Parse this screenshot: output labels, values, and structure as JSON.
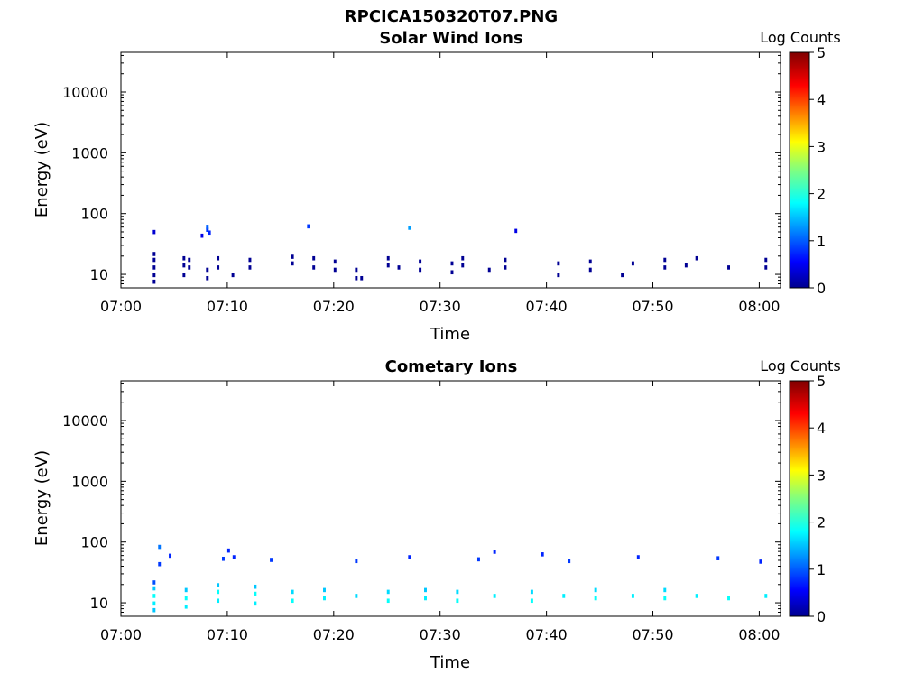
{
  "figure": {
    "title": "RPCICA150320T07.PNG"
  },
  "colorbar": {
    "label": "Log Counts",
    "range": [
      0,
      5
    ],
    "ticks": [
      0,
      1,
      2,
      3,
      4,
      5
    ],
    "colormap": "jet"
  },
  "chart_data": [
    {
      "type": "heatmap",
      "title": "Solar Wind Ions",
      "xlabel": "Time",
      "ylabel": "Energy (eV)",
      "yscale": "log",
      "ylim": [
        6,
        45000
      ],
      "xlim": [
        "07:00",
        "08:02"
      ],
      "xticks": [
        "07:00",
        "07:10",
        "07:20",
        "07:30",
        "07:40",
        "07:50",
        "08:00"
      ],
      "yticks": [
        10,
        100,
        1000,
        10000
      ],
      "y_ticklabels": [
        "10",
        "100",
        "1000",
        "10000"
      ],
      "value_label": "Log Counts",
      "time_bin_minutes": 0.25,
      "energy_bin_factor": 1.17,
      "cells": [
        [
          3.0,
          7,
          0.1
        ],
        [
          3.0,
          9,
          0.1
        ],
        [
          3.0,
          12,
          0.1
        ],
        [
          3.0,
          16,
          0.1
        ],
        [
          3.0,
          20,
          0.1
        ],
        [
          5.8,
          9,
          0.1
        ],
        [
          5.8,
          13,
          0.1
        ],
        [
          5.8,
          17,
          0.1
        ],
        [
          6.3,
          12,
          0.1
        ],
        [
          6.3,
          16,
          0.1
        ],
        [
          8.0,
          8,
          0.1
        ],
        [
          8.0,
          11,
          0.1
        ],
        [
          9.0,
          12,
          0.1
        ],
        [
          9.0,
          17,
          0.1
        ],
        [
          10.4,
          9,
          0.1
        ],
        [
          12.0,
          12,
          0.1
        ],
        [
          12.0,
          16,
          0.1
        ],
        [
          16.0,
          14,
          0.1
        ],
        [
          16.0,
          18,
          0.1
        ],
        [
          18.0,
          12,
          0.1
        ],
        [
          18.0,
          17,
          0.1
        ],
        [
          20.0,
          11,
          0.1
        ],
        [
          20.0,
          15,
          0.1
        ],
        [
          22.0,
          8,
          0.1
        ],
        [
          22.0,
          11,
          0.1
        ],
        [
          22.5,
          8,
          0.1
        ],
        [
          25.0,
          13,
          0.1
        ],
        [
          25.0,
          17,
          0.1
        ],
        [
          26.0,
          12,
          0.1
        ],
        [
          28.0,
          11,
          0.1
        ],
        [
          28.0,
          15,
          0.1
        ],
        [
          31.0,
          10,
          0.1
        ],
        [
          31.0,
          14,
          0.1
        ],
        [
          32.0,
          13,
          0.1
        ],
        [
          32.0,
          17,
          0.1
        ],
        [
          34.5,
          11,
          0.1
        ],
        [
          36.0,
          12,
          0.1
        ],
        [
          36.0,
          16,
          0.1
        ],
        [
          41.0,
          9,
          0.1
        ],
        [
          41.0,
          14,
          0.1
        ],
        [
          44.0,
          11,
          0.1
        ],
        [
          44.0,
          15,
          0.1
        ],
        [
          47.0,
          9,
          0.1
        ],
        [
          48.0,
          14,
          0.1
        ],
        [
          51.0,
          12,
          0.1
        ],
        [
          51.0,
          16,
          0.1
        ],
        [
          53.0,
          13,
          0.1
        ],
        [
          54.0,
          17,
          0.1
        ],
        [
          57.0,
          12,
          0.1
        ],
        [
          60.5,
          12,
          0.1
        ],
        [
          60.5,
          16,
          0.1
        ],
        [
          3.0,
          46,
          0.4
        ],
        [
          8.0,
          50,
          0.9
        ],
        [
          8.0,
          56,
          1.1
        ],
        [
          17.5,
          57,
          0.9
        ],
        [
          27.0,
          54,
          1.4
        ],
        [
          7.5,
          40,
          0.5
        ],
        [
          8.2,
          45,
          0.8
        ],
        [
          37.0,
          48,
          0.5
        ]
      ]
    },
    {
      "type": "heatmap",
      "title": "Cometary Ions",
      "xlabel": "Time",
      "ylabel": "Energy (eV)",
      "yscale": "log",
      "ylim": [
        6,
        45000
      ],
      "xlim": [
        "07:00",
        "08:02"
      ],
      "xticks": [
        "07:00",
        "07:10",
        "07:20",
        "07:30",
        "07:40",
        "07:50",
        "08:00"
      ],
      "yticks": [
        10,
        100,
        1000,
        10000
      ],
      "y_ticklabels": [
        "10",
        "100",
        "1000",
        "10000"
      ],
      "value_label": "Log Counts",
      "time_bin_minutes": 0.25,
      "energy_bin_factor": 1.17,
      "cells": [
        [
          3.0,
          7,
          1.6
        ],
        [
          3.0,
          9,
          1.8
        ],
        [
          3.0,
          12,
          1.9
        ],
        [
          3.0,
          16,
          1.6
        ],
        [
          3.0,
          20,
          1.0
        ],
        [
          6.0,
          8,
          1.8
        ],
        [
          6.0,
          11,
          1.9
        ],
        [
          6.0,
          15,
          1.6
        ],
        [
          9.0,
          10,
          1.8
        ],
        [
          9.0,
          14,
          1.9
        ],
        [
          9.0,
          18,
          1.6
        ],
        [
          12.5,
          9,
          1.8
        ],
        [
          12.5,
          13,
          1.9
        ],
        [
          12.5,
          17,
          1.6
        ],
        [
          16.0,
          10,
          1.9
        ],
        [
          16.0,
          14,
          1.7
        ],
        [
          19.0,
          11,
          1.8
        ],
        [
          19.0,
          15,
          1.6
        ],
        [
          22.0,
          12,
          1.7
        ],
        [
          25.0,
          10,
          1.9
        ],
        [
          25.0,
          14,
          1.7
        ],
        [
          28.5,
          11,
          1.8
        ],
        [
          28.5,
          15,
          1.6
        ],
        [
          31.5,
          10,
          1.9
        ],
        [
          31.5,
          14,
          1.7
        ],
        [
          35.0,
          12,
          1.8
        ],
        [
          38.5,
          10,
          1.9
        ],
        [
          38.5,
          14,
          1.7
        ],
        [
          41.5,
          12,
          1.8
        ],
        [
          44.5,
          11,
          1.9
        ],
        [
          44.5,
          15,
          1.7
        ],
        [
          48.0,
          12,
          1.8
        ],
        [
          51.0,
          11,
          1.9
        ],
        [
          51.0,
          15,
          1.7
        ],
        [
          54.0,
          12,
          1.8
        ],
        [
          57.0,
          11,
          1.9
        ],
        [
          60.5,
          12,
          1.8
        ],
        [
          3.5,
          40,
          0.9
        ],
        [
          4.5,
          55,
          0.8
        ],
        [
          9.5,
          49,
          0.9
        ],
        [
          10.5,
          52,
          0.8
        ],
        [
          14.0,
          47,
          0.9
        ],
        [
          22.0,
          45,
          0.9
        ],
        [
          27.0,
          52,
          0.8
        ],
        [
          33.5,
          48,
          0.9
        ],
        [
          39.5,
          58,
          0.8
        ],
        [
          42.0,
          45,
          0.9
        ],
        [
          48.5,
          52,
          0.8
        ],
        [
          56.0,
          50,
          0.9
        ],
        [
          60.0,
          44,
          0.8
        ],
        [
          3.5,
          77,
          1.2
        ],
        [
          10.0,
          67,
          0.8
        ],
        [
          35.0,
          64,
          0.8
        ]
      ]
    }
  ]
}
